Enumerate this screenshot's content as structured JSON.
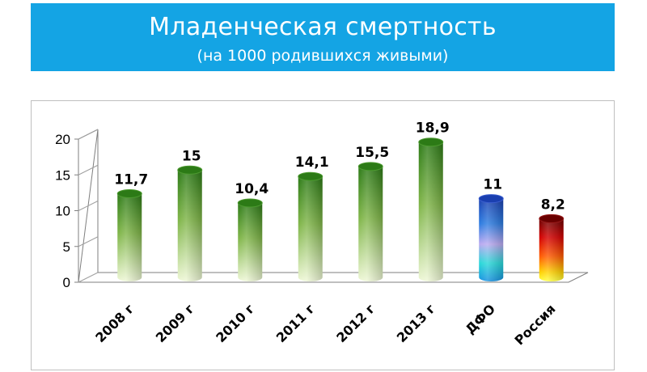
{
  "title": {
    "main": "Младенческая смертность",
    "sub": "(на 1000 родившихся живыми)"
  },
  "colors": {
    "banner": "#14a4e4",
    "bar_green_top": "#2c7a16",
    "bar_green_bottom": "#eef7d6",
    "dfo_gradient": [
      "#1a3fb0",
      "#2b7be0",
      "#b9a8f0",
      "#27d8d8",
      "#1590e0"
    ],
    "russia_gradient": [
      "#6a0000",
      "#d40000",
      "#ff5a00",
      "#ffd000",
      "#ffff40"
    ]
  },
  "chart_data": {
    "type": "bar",
    "title": "Младенческая смертность",
    "subtitle": "(на 1000 родившихся живыми)",
    "categories": [
      "2008 г",
      "2009 г",
      "2010 г",
      "2011 г",
      "2012 г",
      "2013 г",
      "ДФО",
      "Россия"
    ],
    "values": [
      11.7,
      15,
      10.4,
      14.1,
      15.5,
      18.9,
      11,
      8.2
    ],
    "value_labels": [
      "11,7",
      "15",
      "10,4",
      "14,1",
      "15,5",
      "18,9",
      "11",
      "8,2"
    ],
    "bar_styles": [
      "green",
      "green",
      "green",
      "green",
      "green",
      "green",
      "dfo",
      "russia"
    ],
    "yticks": [
      0,
      5,
      10,
      15,
      20
    ],
    "ylim": [
      0,
      20
    ],
    "xlabel": "",
    "ylabel": "",
    "grid": false,
    "legend": "none"
  }
}
